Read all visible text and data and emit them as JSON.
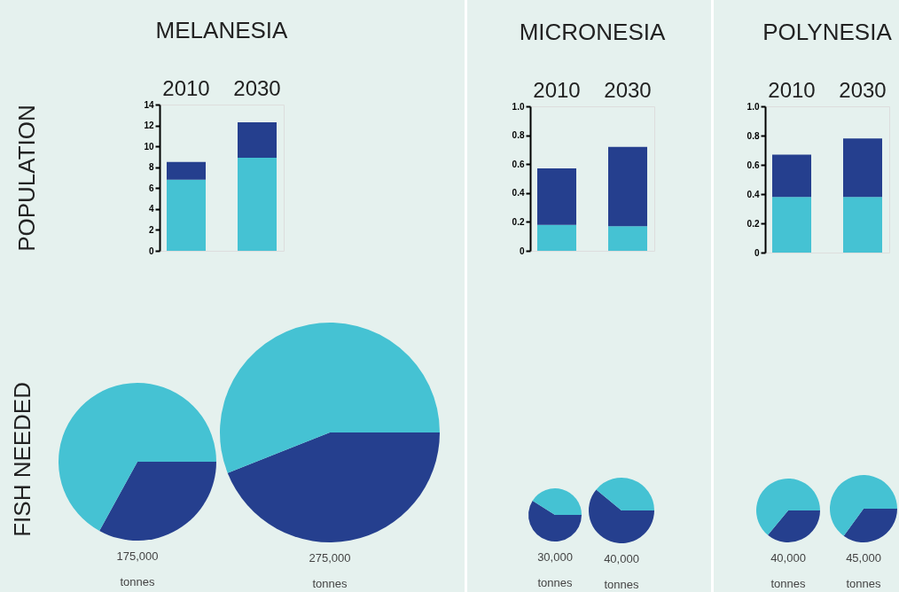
{
  "chart_data": [
    {
      "type": "bar",
      "title": "MELANESIA",
      "ylabel": "POPULATION",
      "categories": [
        "2010",
        "2030"
      ],
      "stacked": true,
      "ylim": [
        0,
        14
      ],
      "yticks": [
        0,
        2,
        4,
        6,
        8,
        10,
        12,
        14
      ],
      "series": [
        {
          "color": "#45c2d3",
          "values": [
            6.8,
            8.9
          ]
        },
        {
          "color": "#253f8e",
          "values": [
            1.7,
            3.4
          ]
        }
      ]
    },
    {
      "type": "bar",
      "title": "MICRONESIA",
      "categories": [
        "2010",
        "2030"
      ],
      "stacked": true,
      "ylim": [
        0,
        1
      ],
      "yticks": [
        0,
        0.2,
        0.4,
        0.6,
        0.8,
        {
          "value": 1,
          "label": "1.0"
        }
      ],
      "series": [
        {
          "color": "#45c2d3",
          "values": [
            0.18,
            0.17
          ]
        },
        {
          "color": "#253f8e",
          "values": [
            0.39,
            0.55
          ]
        }
      ]
    },
    {
      "type": "bar",
      "title": "POLYNESIA",
      "categories": [
        "2010",
        "2030"
      ],
      "stacked": true,
      "ylim": [
        0,
        1
      ],
      "yticks": [
        0,
        0.2,
        0.4,
        0.6,
        0.8,
        {
          "value": 1,
          "label": "1.0"
        }
      ],
      "series": [
        {
          "color": "#45c2d3",
          "values": [
            0.38,
            0.38
          ]
        },
        {
          "color": "#253f8e",
          "values": [
            0.29,
            0.4
          ]
        }
      ]
    },
    {
      "type": "pie",
      "ylabel": "FISH NEEDED",
      "categories": [
        null,
        null
      ],
      "values": [
        33,
        67
      ],
      "colors": [
        "#253f8e",
        "#45c2d3"
      ],
      "annotations": [
        "175,000",
        "tonnes"
      ]
    },
    {
      "type": "pie",
      "categories": [
        null,
        null
      ],
      "values": [
        44,
        56
      ],
      "colors": [
        "#253f8e",
        "#45c2d3"
      ],
      "annotations": [
        "275,000",
        "tonnes"
      ]
    },
    {
      "type": "pie",
      "categories": [
        null,
        null
      ],
      "values": [
        59,
        41
      ],
      "colors": [
        "#253f8e",
        "#45c2d3"
      ],
      "annotations": [
        "30,000",
        "tonnes"
      ]
    },
    {
      "type": "pie",
      "categories": [
        null,
        null
      ],
      "values": [
        61,
        39
      ],
      "colors": [
        "#253f8e",
        "#45c2d3"
      ],
      "annotations": [
        "40,000",
        "tonnes"
      ]
    },
    {
      "type": "pie",
      "categories": [
        null,
        null
      ],
      "values": [
        36,
        64
      ],
      "colors": [
        "#253f8e",
        "#45c2d3"
      ],
      "annotations": [
        "40,000",
        "tonnes"
      ]
    },
    {
      "type": "pie",
      "categories": [
        null,
        null
      ],
      "values": [
        35,
        65
      ],
      "colors": [
        "#253f8e",
        "#45c2d3"
      ],
      "annotations": [
        "45,000",
        "tonnes"
      ]
    }
  ]
}
